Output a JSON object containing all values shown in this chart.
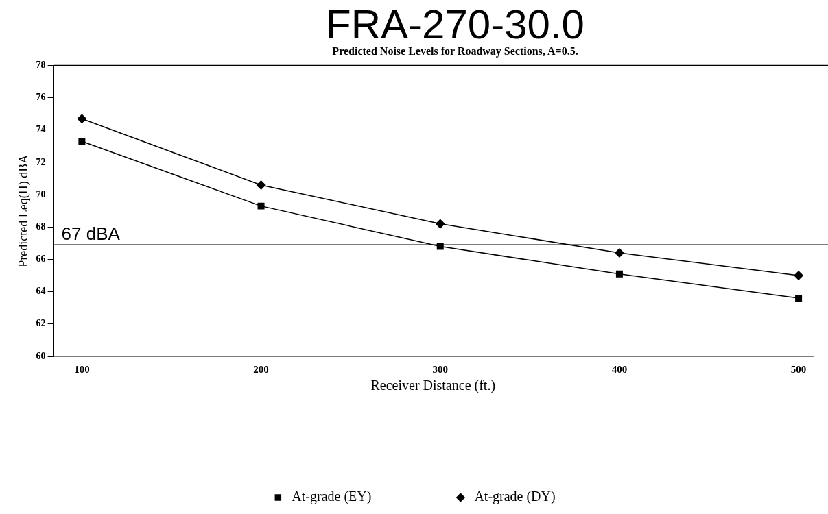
{
  "chart_data": {
    "type": "line",
    "title": "FRA-270-30.0",
    "subtitle": "Predicted Noise Levels for Roadway Sections, A=0.5.",
    "xlabel": "Receiver Distance (ft.)",
    "ylabel": "Predicted Leq(H) dBA",
    "x": [
      100,
      200,
      300,
      400,
      500
    ],
    "series": [
      {
        "name": "At-grade (EY)",
        "color": "#000000",
        "marker": "square",
        "values": [
          73.3,
          69.3,
          66.8,
          65.1,
          63.6
        ]
      },
      {
        "name": "At-grade (DY)",
        "color": "#000000",
        "marker": "diamond",
        "values": [
          74.7,
          70.6,
          68.2,
          66.4,
          65.0
        ]
      }
    ],
    "xlim": [
      84,
      508
    ],
    "xticks": [
      100,
      200,
      300,
      400,
      500
    ],
    "ylim": [
      60,
      78
    ],
    "yticks": [
      60,
      62,
      64,
      66,
      68,
      70,
      72,
      74,
      76,
      78
    ],
    "ref_lines": [
      {
        "axis": "y",
        "value": 66.9,
        "label": "67 dBA",
        "color": "#000000"
      }
    ],
    "grid": false,
    "legend": "bottom",
    "line_style": "solid"
  }
}
